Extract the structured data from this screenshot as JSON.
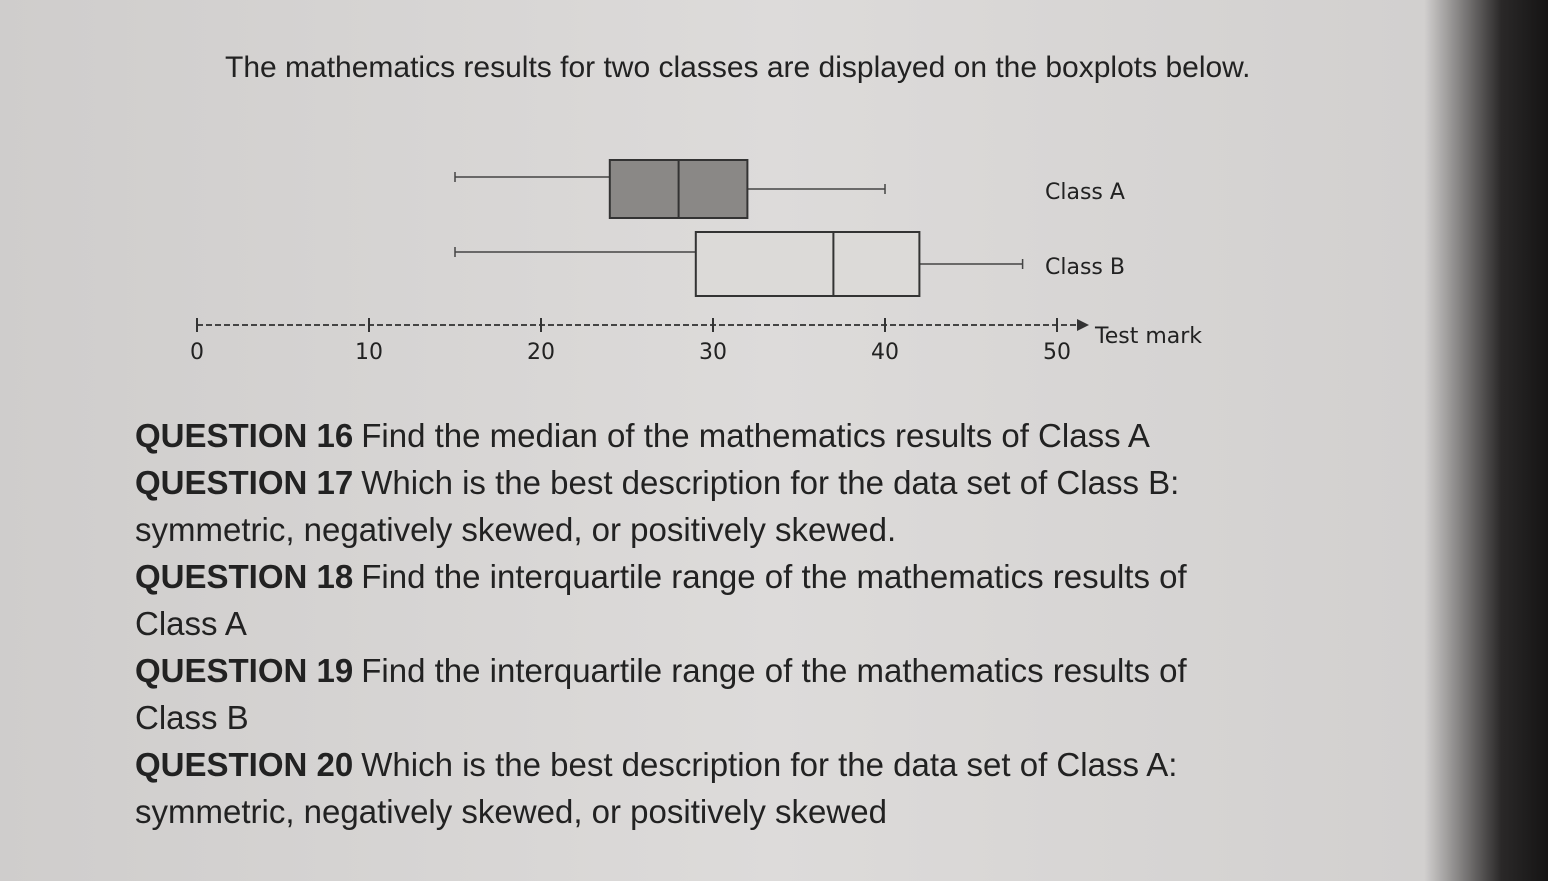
{
  "intro": "The mathematics results for two classes are displayed on the boxplots below.",
  "chart_data": {
    "type": "boxplot",
    "orientation": "horizontal",
    "xlabel": "Test mark",
    "xlim": [
      0,
      50
    ],
    "xticks": [
      0,
      10,
      20,
      30,
      40,
      50
    ],
    "boxes": [
      {
        "name": "Class A",
        "color": "#8a8886",
        "min": 15,
        "q1": 24,
        "median": 28,
        "q3": 32,
        "max": 40
      },
      {
        "name": "Class B",
        "color": "#dcdad8",
        "min": 15,
        "q1": 29,
        "median": 37,
        "q3": 42,
        "max": 48
      }
    ]
  },
  "questions": [
    {
      "label": "QUESTION 16",
      "text": "Find the median of the mathematics results of Class A"
    },
    {
      "label": "QUESTION 17",
      "text": "Which is the best description for the data set of Class B: symmetric, negatively skewed, or positively skewed."
    },
    {
      "label": "QUESTION 18",
      "text": "Find the interquartile range of the mathematics results of Class A"
    },
    {
      "label": "QUESTION 19",
      "text": "Find the interquartile range of the mathematics results of Class B"
    },
    {
      "label": "QUESTION 20",
      "text": "Which is the best description for the data set of Class A: symmetric, negatively skewed, or positively skewed"
    }
  ]
}
